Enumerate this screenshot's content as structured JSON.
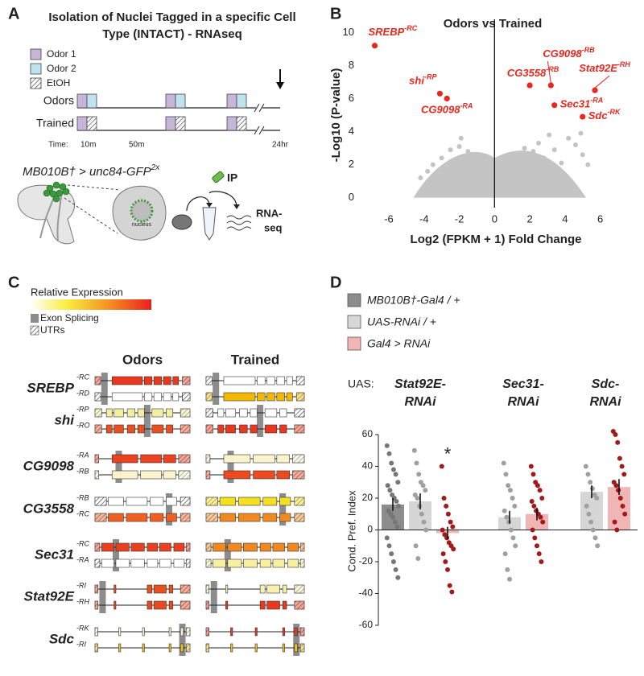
{
  "panel_a": {
    "label": "A",
    "title": [
      "Isolation of Nuclei Tagged in a specific Cell",
      "Type (INTACT) - RNAseq"
    ],
    "legend": [
      "Odor 1",
      "Odor 2",
      "EtOH"
    ],
    "rows": [
      "Odors",
      "Trained"
    ],
    "time_label": "Time:",
    "times": [
      "10m",
      "50m",
      "24hr"
    ],
    "genotype": {
      "text": "MB010B† > unc84-GFP",
      "sup": "2x"
    },
    "cell_label": "nucleus",
    "ip_label": "IP",
    "output_label": [
      "RNA-",
      "seq"
    ]
  },
  "panel_c": {
    "label": "C",
    "colorbar_label": "Relative Expression",
    "legend": [
      "Exon Splicing",
      "UTRs"
    ],
    "columns": [
      "Odors",
      "Trained"
    ],
    "genes": [
      {
        "name": "SREBP",
        "isoforms": [
          "-RC",
          "-RD"
        ],
        "odors": [
          "#e8381e",
          "#ffffff"
        ],
        "trained": [
          "#ffffff",
          "#f5b800"
        ]
      },
      {
        "name": "shi",
        "isoforms": [
          "-RP",
          "-RO"
        ],
        "odors": [
          "#f3eea0",
          "#e85020"
        ],
        "trained": [
          "#ffffff",
          "#e83820"
        ]
      },
      {
        "name": "CG9098",
        "isoforms": [
          "-RA",
          "-RB"
        ],
        "odors": [
          "#ec4020",
          "#fbf3cc"
        ],
        "trained": [
          "#fbf3cc",
          "#ee4a22"
        ]
      },
      {
        "name": "CG3558",
        "isoforms": [
          "-RB",
          "-RC"
        ],
        "odors": [
          "#ffffff",
          "#f06020"
        ],
        "trained": [
          "#f3e020",
          "#f08a20"
        ]
      },
      {
        "name": "Sec31",
        "isoforms": [
          "-RC",
          "-RA"
        ],
        "odors": [
          "#e84020",
          "#ffffff"
        ],
        "trained": [
          "#f08a20",
          "#f8f0a0"
        ]
      },
      {
        "name": "Stat92E",
        "isoforms": [
          "-RI",
          "-RH"
        ],
        "odors": [
          "#e8501e",
          "#e84a20"
        ],
        "trained": [
          "#f8f0b0",
          "#e83820"
        ]
      },
      {
        "name": "Sdc",
        "isoforms": [
          "-RK",
          "-RI"
        ],
        "odors": [
          "#f8f4d0",
          "#f0c020"
        ],
        "trained": [
          "#e83820",
          "#f0c020"
        ]
      }
    ]
  },
  "chart_data": [
    {
      "type": "scatter",
      "panel_label": "B",
      "title": "Odors vs Trained",
      "x_label": "Log2 (FPKM + 1) Fold Change",
      "y_label": "-Log10 (P-value)",
      "xlim": [
        -7.6,
        7.8
      ],
      "ylim": [
        -0.6,
        10.6
      ],
      "xticks": [
        -6,
        -4,
        -2,
        0,
        2,
        4,
        6
      ],
      "yticks": [
        0,
        2,
        4,
        6,
        8,
        10
      ],
      "reference_line_x": 0,
      "background": {
        "color": "#c4c4c4",
        "x": [
          -4.2,
          -3.8,
          -3.5,
          -3.2,
          -3.0,
          -2.8,
          -2.5,
          -2.3,
          -2.0,
          -1.8,
          -1.5,
          -1.3,
          -1.0,
          -0.8,
          -0.5,
          -0.3,
          0.2,
          0.4,
          0.7,
          0.9,
          1.2,
          1.4,
          1.7,
          1.9,
          2.2,
          2.5,
          2.8,
          3.1,
          3.4,
          3.8,
          4.2,
          4.6,
          5.0,
          -0.6,
          0.6,
          -1.2,
          1.1,
          -2.1,
          2.0,
          -3.6,
          3.6,
          -0.2,
          0.1,
          1.5,
          -1.6,
          2.6,
          -2.6,
          4.9,
          5.3,
          -1.9
        ],
        "y": [
          1.2,
          1.6,
          2.0,
          1.4,
          2.4,
          1.8,
          2.9,
          2.2,
          3.1,
          2.5,
          2.8,
          1.9,
          2.3,
          1.5,
          1.9,
          0.8,
          1.0,
          1.7,
          2.2,
          1.4,
          2.6,
          1.8,
          3.0,
          2.2,
          2.8,
          3.3,
          2.4,
          3.8,
          2.9,
          2.1,
          3.6,
          3.2,
          2.6,
          0.4,
          0.5,
          0.9,
          0.7,
          1.0,
          1.1,
          0.6,
          0.8,
          0.2,
          0.3,
          0.4,
          0.5,
          0.9,
          1.2,
          3.9,
          2.0,
          3.6
        ]
      },
      "highlights": {
        "color": "#e8281e",
        "points": [
          {
            "gene": "SREBP",
            "isoform": "-RC",
            "x": -6.8,
            "y": 9.2
          },
          {
            "gene": "shi",
            "isoform": "-RP",
            "x": -3.1,
            "y": 6.3
          },
          {
            "gene": "CG9098",
            "isoform": "-RA",
            "x": -2.7,
            "y": 6.0
          },
          {
            "gene": "CG9098",
            "isoform": "-RB",
            "x": 3.2,
            "y": 6.8
          },
          {
            "gene": "CG3558",
            "isoform": "-RB",
            "x": 2.0,
            "y": 6.8
          },
          {
            "gene": "Stat92E",
            "isoform": "-RH",
            "x": 5.7,
            "y": 6.5
          },
          {
            "gene": "Sec31",
            "isoform": "-RA",
            "x": 3.4,
            "y": 5.6
          },
          {
            "gene": "Sdc",
            "isoform": "-RK",
            "x": 5.0,
            "y": 4.9
          }
        ]
      }
    },
    {
      "type": "bar",
      "panel_label": "D",
      "uas_label": "UAS:",
      "y_label": "Cond. Pref. Index",
      "categories": [
        [
          "Stat92E-",
          "RNAi"
        ],
        [
          "Sec31-",
          "RNAi"
        ],
        [
          "Sdc-",
          "RNAi"
        ]
      ],
      "ylim": [
        -60,
        60
      ],
      "yticks": [
        -60,
        -40,
        -20,
        0,
        20,
        40,
        60
      ],
      "baseline": 0,
      "series": [
        {
          "name": "MB010B†-Gal4 / +",
          "color": "#8c8c8c",
          "point_color": "#767676",
          "values": [
            16,
            null,
            null
          ],
          "errors": [
            4,
            null,
            null
          ],
          "points": [
            [
              53,
              48,
              42,
              38,
              35,
              30,
              28,
              25,
              22,
              20,
              18,
              15,
              12,
              10,
              8,
              5,
              2,
              -5,
              -10,
              -15,
              -20,
              -25,
              -30
            ],
            [],
            []
          ]
        },
        {
          "name": "UAS-RNAi / +",
          "color": "#d6d6d6",
          "point_color": "#a0a0a0",
          "values": [
            18,
            8,
            24
          ],
          "errors": [
            5,
            4,
            4
          ],
          "points": [
            [
              50,
              42,
              35,
              30,
              28,
              25,
              22,
              20,
              15,
              10,
              5,
              0,
              -10,
              -18
            ],
            [
              42,
              35,
              28,
              25,
              20,
              15,
              12,
              8,
              5,
              0,
              -5,
              -10,
              -15,
              -25,
              -31
            ],
            [
              40,
              35,
              30,
              26,
              22,
              20,
              15,
              10,
              5,
              0,
              -5,
              -10
            ]
          ]
        },
        {
          "name": "Gal4 > RNAi",
          "color": "#f2b5b5",
          "point_color": "#a01c1c",
          "values": [
            -2,
            10,
            27
          ],
          "errors": [
            4,
            4,
            5
          ],
          "points": [
            [
              40,
              20,
              15,
              10,
              5,
              2,
              0,
              -3,
              -5,
              -8,
              -10,
              -12,
              -15,
              -20,
              -25,
              -35,
              -39
            ],
            [
              40,
              35,
              30,
              28,
              25,
              20,
              18,
              15,
              12,
              10,
              8,
              5,
              0,
              -5,
              -10,
              -15,
              -20
            ],
            [
              62,
              60,
              55,
              45,
              40,
              35,
              30,
              28,
              25,
              20,
              15,
              10,
              5,
              0
            ]
          ]
        }
      ],
      "annotations": [
        {
          "text": "*",
          "category": 0,
          "series": 2
        }
      ]
    }
  ]
}
